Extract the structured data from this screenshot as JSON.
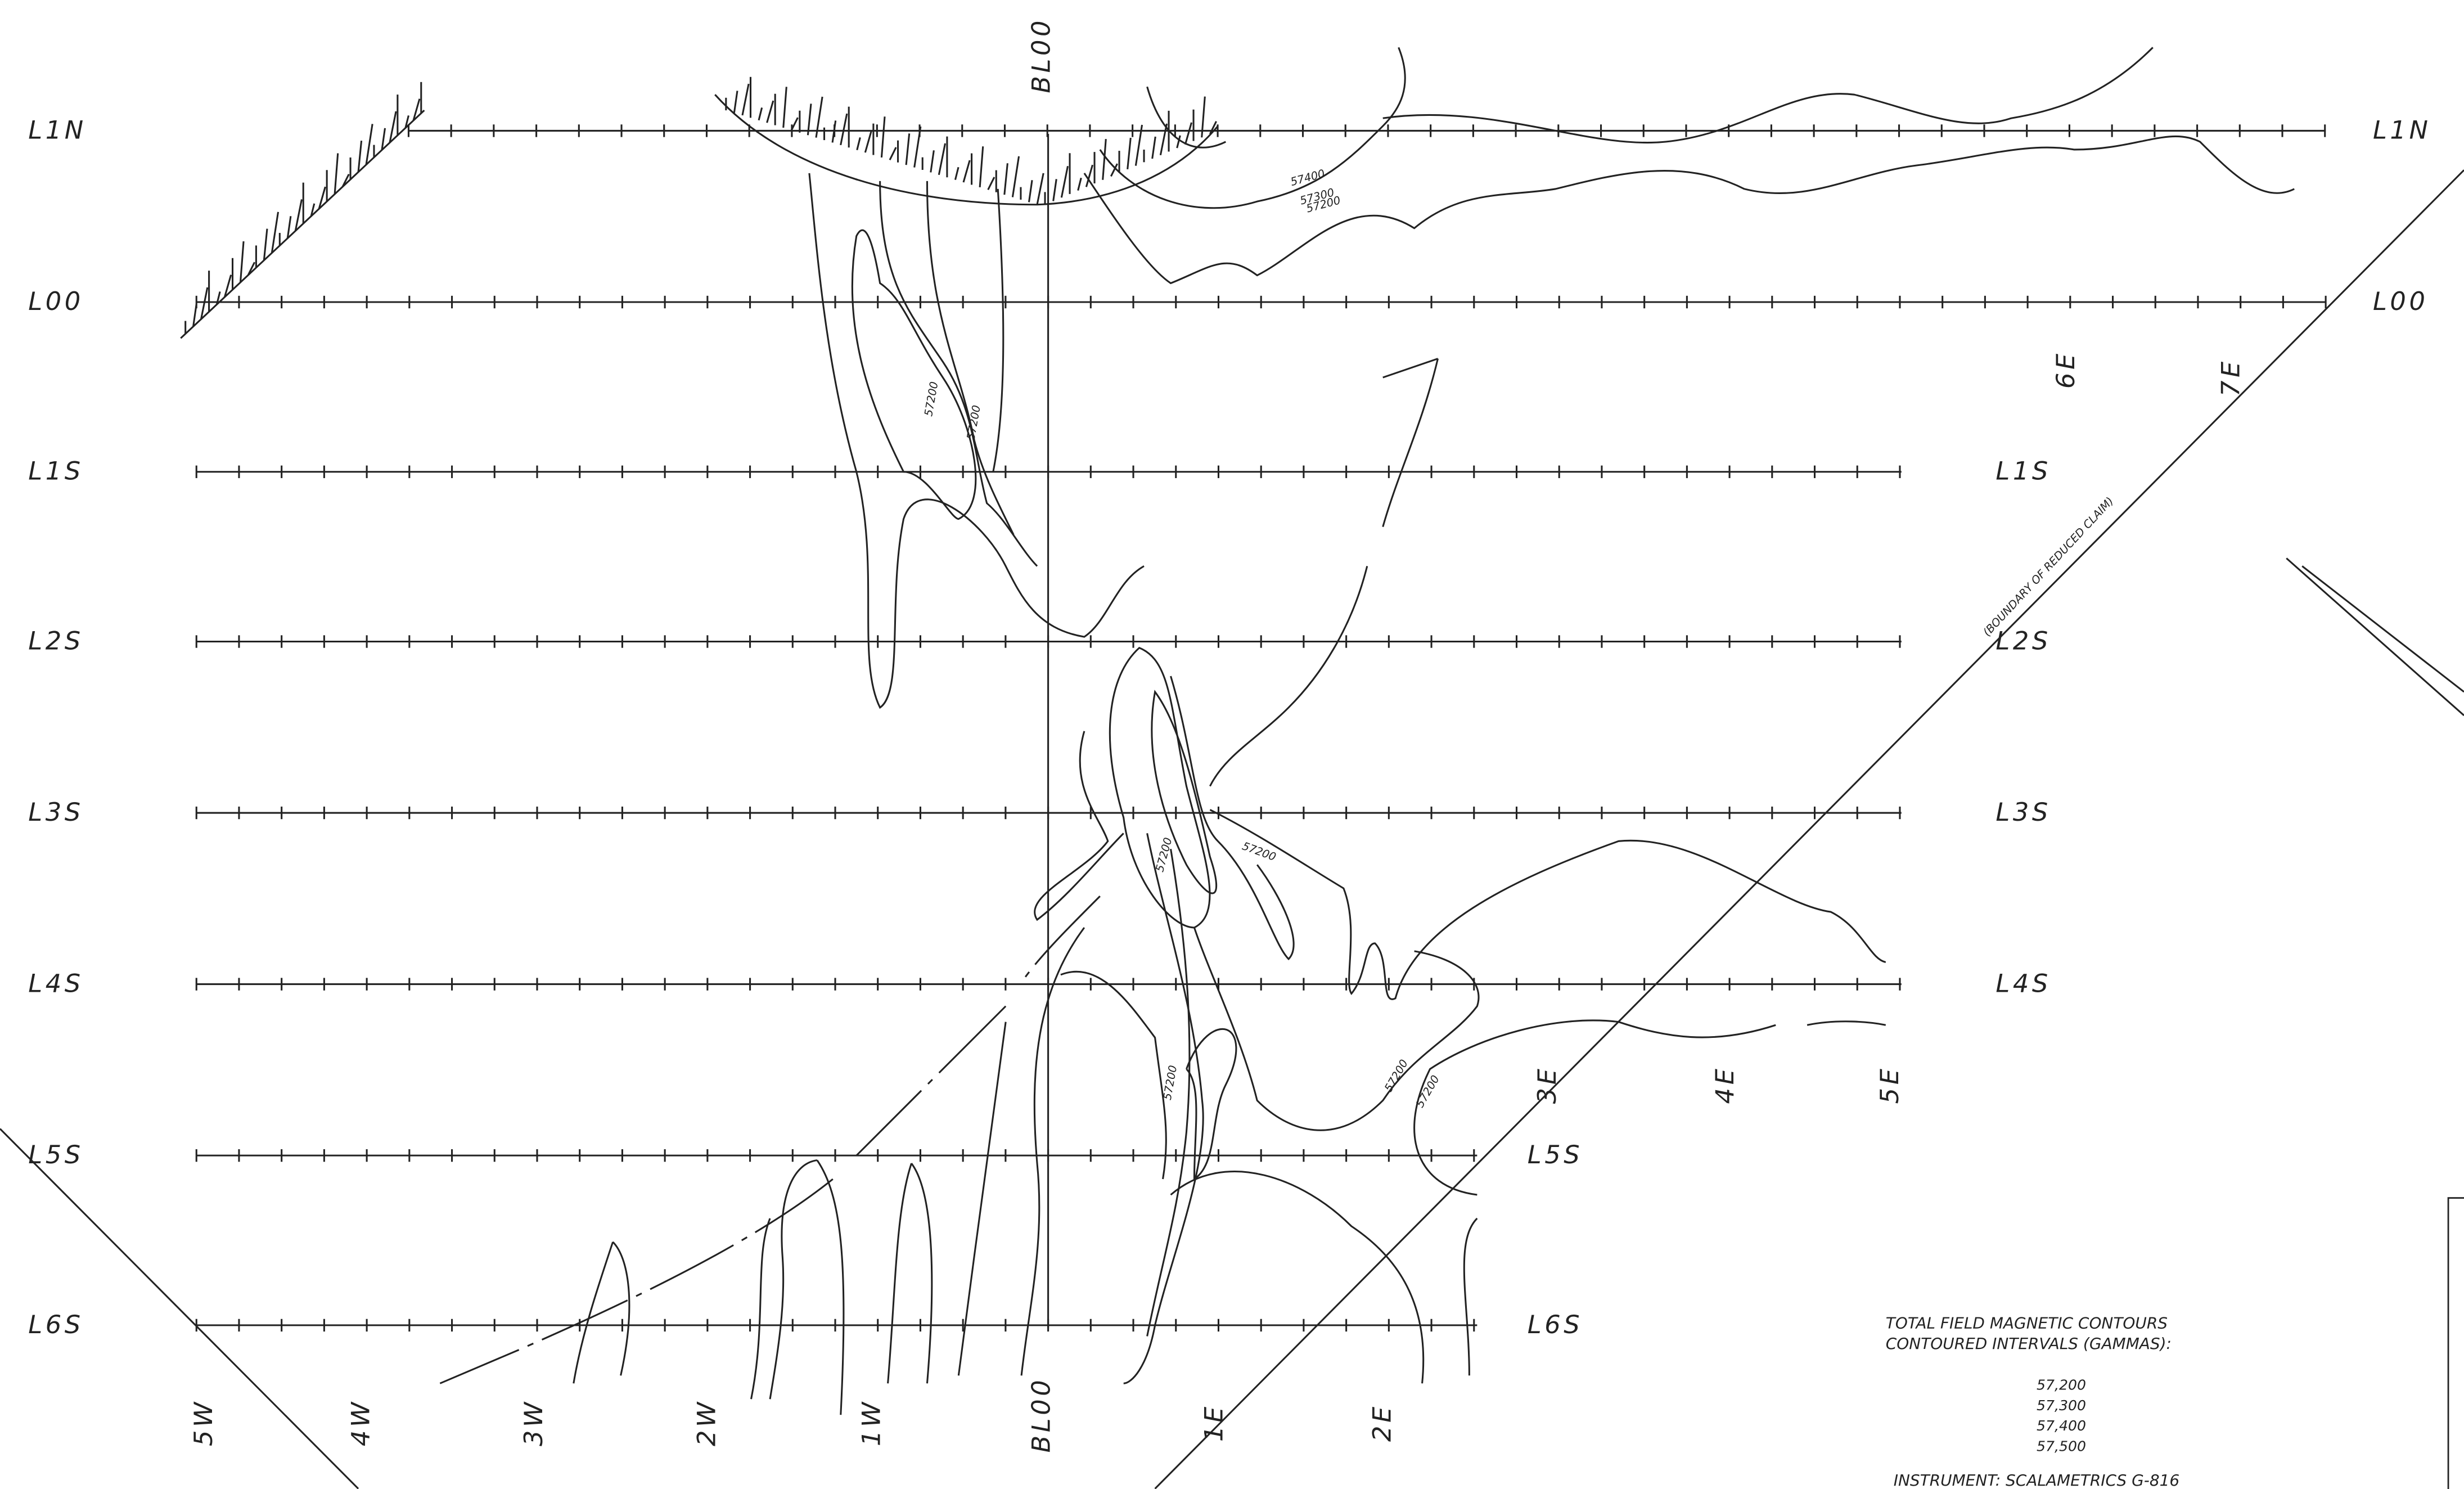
{
  "line_labels_left": [
    "L1N",
    "L00",
    "L1S",
    "L2S",
    "L3S",
    "L4S",
    "L5S",
    "L6S"
  ],
  "line_labels_right": [
    "L1N",
    "L00",
    "L1S",
    "L2S",
    "L3S",
    "L4S",
    "L5S",
    "L6S"
  ],
  "baseline_label": "BL00",
  "station_labels": [
    "5W",
    "4W",
    "3W",
    "2W",
    "1W",
    "BL00",
    "1E",
    "2E",
    "3E",
    "4E",
    "5E",
    "6E",
    "7E"
  ],
  "boundary_note": "(BOUNDARY OF REDUCED CLAIM)",
  "contour_labels": [
    "57400",
    "57300",
    "57200",
    "57200",
    "57200",
    "57200",
    "57200",
    "57200",
    "57200",
    "57200"
  ],
  "legend": {
    "title": "TOTAL FIELD MAGNETIC CONTOURS",
    "subtitle": "CONTOURED INTERVALS (GAMMAS):",
    "intervals": [
      "57,200",
      "57,300",
      "57,400",
      "57,500"
    ],
    "instrument": "INSTRUMENT: SCALAMETRICS G-816"
  }
}
